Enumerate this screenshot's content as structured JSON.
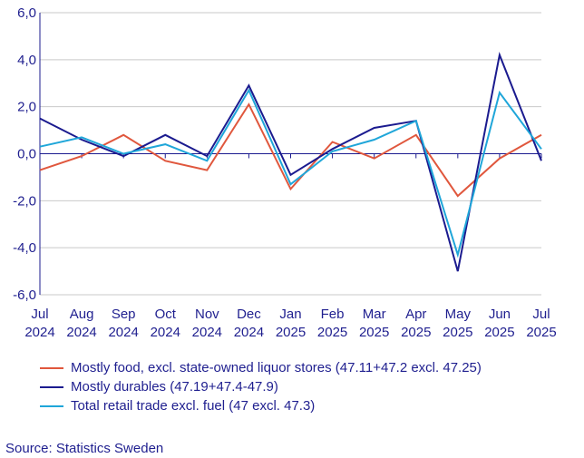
{
  "chart_data": {
    "type": "line",
    "categories": [
      [
        "Jul",
        "2024"
      ],
      [
        "Aug",
        "2024"
      ],
      [
        "Sep",
        "2024"
      ],
      [
        "Oct",
        "2024"
      ],
      [
        "Nov",
        "2024"
      ],
      [
        "Dec",
        "2024"
      ],
      [
        "Jan",
        "2025"
      ],
      [
        "Feb",
        "2025"
      ],
      [
        "Mar",
        "2025"
      ],
      [
        "Apr",
        "2025"
      ],
      [
        "May",
        "2025"
      ],
      [
        "Jun",
        "2025"
      ],
      [
        "Jul",
        "2025"
      ]
    ],
    "ylim": [
      -6,
      6
    ],
    "yticks": [
      "-6,0",
      "-4,0",
      "-2,0",
      "0,0",
      "2,0",
      "4,0",
      "6,0"
    ],
    "ytick_values": [
      -6,
      -4,
      -2,
      0,
      2,
      4,
      6
    ],
    "grid": "horizontal",
    "legend_position": "bottom",
    "series": [
      {
        "name": "Mostly food, excl. state-owned liquor stores (47.11+47.2 excl. 47.25)",
        "color": "#e0573d",
        "values": [
          -0.7,
          -0.1,
          0.8,
          -0.3,
          -0.7,
          2.1,
          -1.5,
          0.5,
          -0.2,
          0.8,
          -1.8,
          -0.2,
          0.8
        ]
      },
      {
        "name": "Mostly durables (47.19+47.4-47.9)",
        "color": "#1b1b8f",
        "values": [
          1.5,
          0.6,
          -0.1,
          0.8,
          -0.1,
          2.9,
          -0.9,
          0.2,
          1.1,
          1.4,
          -5.0,
          4.2,
          -0.3
        ]
      },
      {
        "name": "Total retail trade excl. fuel (47 excl. 47.3)",
        "color": "#1fa6d9",
        "values": [
          0.3,
          0.7,
          0.0,
          0.4,
          -0.3,
          2.7,
          -1.3,
          0.1,
          0.6,
          1.4,
          -4.3,
          2.6,
          0.2
        ]
      }
    ]
  },
  "source": "Source: Statistics Sweden"
}
